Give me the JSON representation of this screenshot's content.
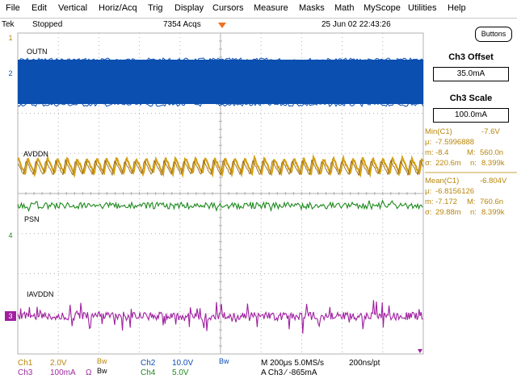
{
  "menu": [
    "File",
    "Edit",
    "Vertical",
    "Horiz/Acq",
    "Trig",
    "Display",
    "Cursors",
    "Measure",
    "Masks",
    "Math",
    "MyScope",
    "Utilities",
    "Help"
  ],
  "status": {
    "brand": "Tek",
    "run_state": "Stopped",
    "acqs": "7354 Acqs",
    "datetime": "25 Jun 02 22:43:26"
  },
  "buttons_label": "Buttons",
  "offset": {
    "title": "Ch3 Offset",
    "value": "35.0mA"
  },
  "scale": {
    "title": "Ch3 Scale",
    "value": "100.0mA"
  },
  "meas1": {
    "title": "Min(C1)",
    "value": "-7.6V",
    "mu_label": "μ:",
    "mu": "-7.5996888",
    "m_label": "m:",
    "m": "-8.4",
    "M_label": "M:",
    "M": "560.0n",
    "sigma_label": "σ:",
    "sigma": "220.6m",
    "n_label": "n:",
    "n": "8.399k"
  },
  "meas2": {
    "title": "Mean(C1)",
    "value": "-6.804V",
    "mu_label": "μ:",
    "mu": "-6.8156126",
    "m_label": "m:",
    "m": "-7.172",
    "M_label": "M:",
    "M": "760.6n",
    "sigma_label": "σ:",
    "sigma": "29.88m",
    "n_label": "n:",
    "n": "8.399k"
  },
  "traces": {
    "outn": "OUTN",
    "avddn": "AVDDN",
    "psn": "PSN",
    "iavddn": "IAVDDN"
  },
  "markers": {
    "ch1": "1",
    "ch2": "2",
    "ch3": "3",
    "ch4": "4"
  },
  "bottom": {
    "ch1": "Ch1",
    "ch1_scale": "2.0V",
    "bw1": "Bw",
    "ch2": "Ch2",
    "ch2_scale": "10.0V",
    "bw2": "Bw",
    "ch3": "Ch3",
    "ch3_scale": "100mA",
    "ch3_ohm": "Ω",
    "ch4": "Ch4",
    "ch4_scale": "5.0V",
    "bw3": "Bw",
    "timebase": "M 200μs 5.0MS/s",
    "ptres": "200ns/pt",
    "trigger": "A  Ch3  ⁄  -865mA"
  },
  "colors": {
    "ch1": "#d4a017",
    "ch2": "#0b4fb0",
    "ch3": "#a020a0",
    "ch4": "#1e8a1e",
    "grid": "#b0b0b0"
  }
}
